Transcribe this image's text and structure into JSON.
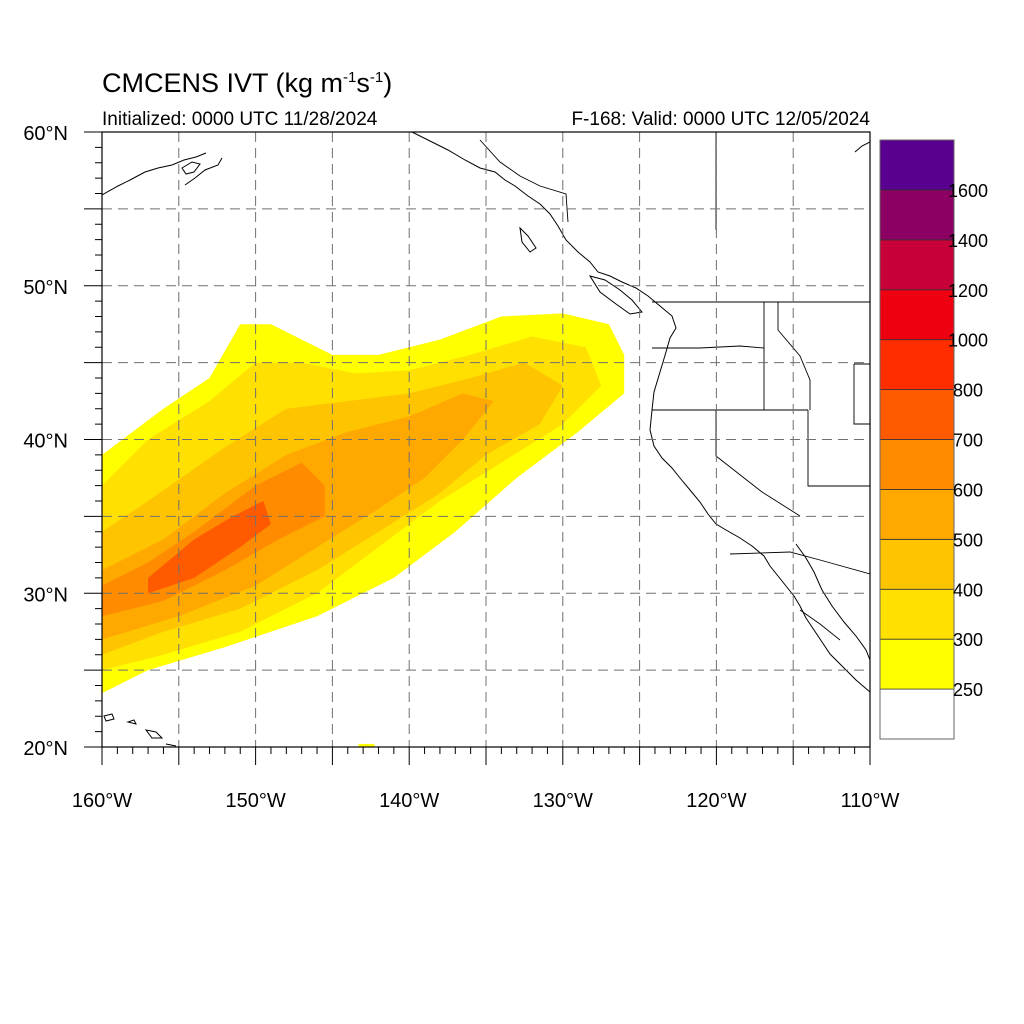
{
  "title": {
    "main": "CMCENS IVT (kg m",
    "sup1": "-1",
    "mid": "s",
    "sup2": "-1",
    "end": ")"
  },
  "subtitle_left": "Initialized: 0000 UTC 11/28/2024",
  "subtitle_right": "F-168: Valid: 0000 UTC 12/05/2024",
  "chart_data": {
    "type": "heatmap",
    "variable": "IVT",
    "units": "kg m-1 s-1",
    "lon_range": [
      -160,
      -110
    ],
    "lat_range": [
      20,
      60
    ],
    "x_ticks": [
      "160°W",
      "150°W",
      "140°W",
      "130°W",
      "120°W",
      "110°W"
    ],
    "y_ticks": [
      "60°N",
      "50°N",
      "40°N",
      "30°N",
      "20°N"
    ],
    "grid": "dashed, every 5 degrees",
    "colorbar": {
      "labels": [
        "250",
        "300",
        "400",
        "500",
        "600",
        "700",
        "800",
        "1000",
        "1200",
        "1400",
        "1600"
      ],
      "colors": [
        "#ffffff",
        "#ffff00",
        "#ffe000",
        "#ffc400",
        "#ffa800",
        "#ff8c00",
        "#ff5a00",
        "#ff2d00",
        "#ee0010",
        "#c80038",
        "#8b0062",
        "#5a0090"
      ]
    },
    "river_levels": [
      {
        "level": "250-300",
        "color": "#ffff00",
        "polygon": [
          [
            -160,
            23.5
          ],
          [
            -157,
            25
          ],
          [
            -152,
            26.5
          ],
          [
            -146,
            28.5
          ],
          [
            -141,
            31
          ],
          [
            -137,
            34
          ],
          [
            -133,
            37.5
          ],
          [
            -129,
            40.5
          ],
          [
            -126,
            43
          ],
          [
            -126,
            45.5
          ],
          [
            -127,
            47.5
          ],
          [
            -130,
            48.2
          ],
          [
            -134,
            48
          ],
          [
            -138,
            46.5
          ],
          [
            -142,
            45.5
          ],
          [
            -145,
            45.5
          ],
          [
            -147,
            46.5
          ],
          [
            -149,
            47.5
          ],
          [
            -151,
            47.5
          ],
          [
            -153,
            44
          ],
          [
            -156,
            42
          ],
          [
            -160,
            39
          ]
        ]
      },
      {
        "level": "300-400",
        "color": "#ffe000",
        "polygon": [
          [
            -160,
            25
          ],
          [
            -156,
            26
          ],
          [
            -151,
            27.5
          ],
          [
            -146,
            30
          ],
          [
            -142,
            33
          ],
          [
            -138,
            36
          ],
          [
            -134,
            38.5
          ],
          [
            -130,
            41
          ],
          [
            -127.5,
            43.5
          ],
          [
            -128.5,
            46
          ],
          [
            -132,
            46.7
          ],
          [
            -136,
            45.5
          ],
          [
            -140,
            44.5
          ],
          [
            -143.5,
            44.3
          ],
          [
            -147,
            45
          ],
          [
            -150,
            45
          ],
          [
            -153,
            42.5
          ],
          [
            -157,
            40
          ],
          [
            -160,
            37
          ]
        ]
      },
      {
        "level": "400-500",
        "color": "#ffc400",
        "polygon": [
          [
            -160,
            26
          ],
          [
            -156,
            27.5
          ],
          [
            -151,
            29
          ],
          [
            -146,
            31.5
          ],
          [
            -142,
            34
          ],
          [
            -138,
            36.5
          ],
          [
            -135,
            39
          ],
          [
            -131.5,
            41
          ],
          [
            -130,
            43.5
          ],
          [
            -132.5,
            45
          ],
          [
            -136,
            44
          ],
          [
            -140,
            43
          ],
          [
            -144,
            42.5
          ],
          [
            -148,
            42
          ],
          [
            -152,
            39.5
          ],
          [
            -157,
            36
          ],
          [
            -160,
            34
          ]
        ]
      },
      {
        "level": "500-600",
        "color": "#ffa800",
        "polygon": [
          [
            -160,
            27
          ],
          [
            -155,
            28.5
          ],
          [
            -150,
            30.5
          ],
          [
            -146,
            33
          ],
          [
            -142,
            35.5
          ],
          [
            -139,
            37.5
          ],
          [
            -136.5,
            40
          ],
          [
            -134.5,
            42.5
          ],
          [
            -136.5,
            43
          ],
          [
            -140,
            41.5
          ],
          [
            -144,
            40.5
          ],
          [
            -148,
            39
          ],
          [
            -152,
            36.5
          ],
          [
            -156,
            33.5
          ],
          [
            -160,
            31.5
          ]
        ]
      },
      {
        "level": "600-700",
        "color": "#ff8c00",
        "polygon": [
          [
            -160,
            28.5
          ],
          [
            -156,
            29.5
          ],
          [
            -152,
            31.5
          ],
          [
            -148.5,
            33.5
          ],
          [
            -145.5,
            35
          ],
          [
            -145.5,
            37
          ],
          [
            -147,
            38.5
          ],
          [
            -150,
            37
          ],
          [
            -154,
            34
          ],
          [
            -157,
            32
          ],
          [
            -160,
            30.5
          ]
        ]
      },
      {
        "level": "700-800",
        "color": "#ff5a00",
        "polygon": [
          [
            -157,
            30
          ],
          [
            -154,
            31
          ],
          [
            -151,
            33
          ],
          [
            -149,
            34.5
          ],
          [
            -149.5,
            36
          ],
          [
            -151.5,
            35
          ],
          [
            -154,
            33.5
          ],
          [
            -157,
            31
          ]
        ]
      }
    ]
  }
}
